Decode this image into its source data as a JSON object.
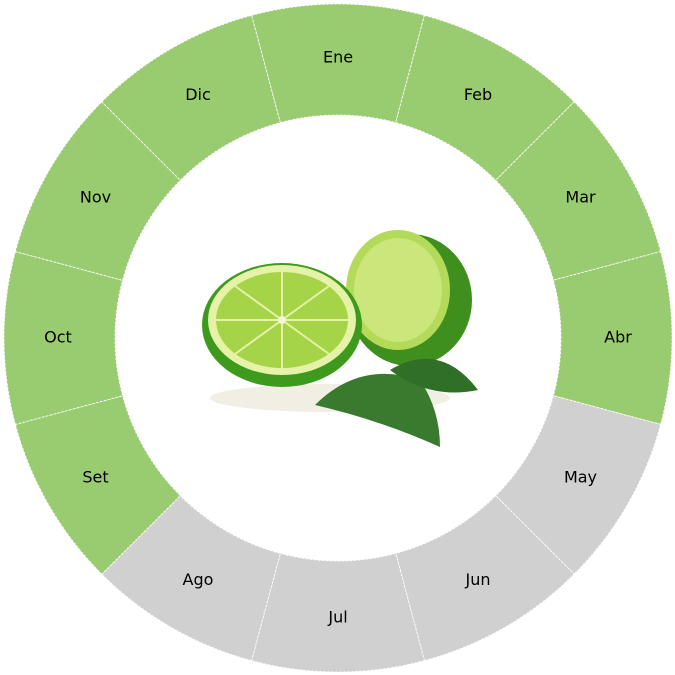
{
  "chart_data": {
    "type": "pie",
    "variant": "donut",
    "categories": [
      "Ene",
      "Feb",
      "Mar",
      "Abr",
      "May",
      "Jun",
      "Jul",
      "Ago",
      "Set",
      "Oct",
      "Nov",
      "Dic"
    ],
    "values": [
      1,
      1,
      1,
      1,
      1,
      1,
      1,
      1,
      1,
      1,
      1,
      1
    ],
    "in_season": [
      true,
      true,
      true,
      true,
      false,
      false,
      false,
      false,
      true,
      true,
      true,
      true
    ],
    "colors": {
      "in_season": "#99cb70",
      "out_of_season": "#d0d0d0",
      "separator": "#ffffff"
    },
    "center_image": "lime-fruit"
  }
}
